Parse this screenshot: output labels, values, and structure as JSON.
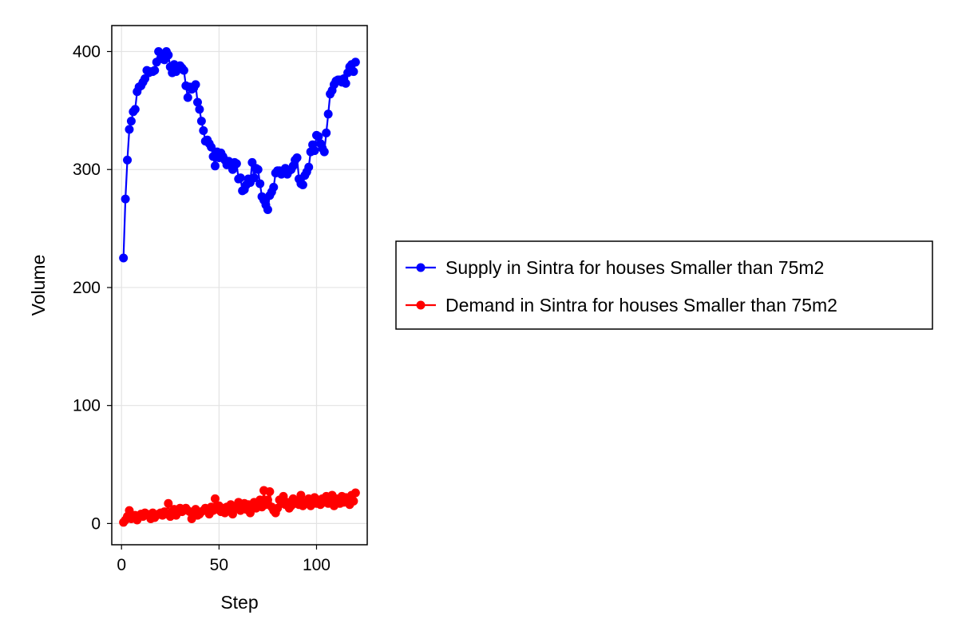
{
  "chart_data": {
    "type": "line",
    "xlabel": "Step",
    "ylabel": "Volume",
    "xlim": [
      -5,
      126
    ],
    "ylim": [
      -18,
      422
    ],
    "xticks": [
      0,
      50,
      100
    ],
    "yticks": [
      0,
      100,
      200,
      300,
      400
    ],
    "xtick_labels": [
      "0",
      "50",
      "100"
    ],
    "ytick_labels": [
      "0",
      "100",
      "200",
      "300",
      "400"
    ],
    "grid": true,
    "legend_position": "right-outside",
    "markers": true,
    "series": [
      {
        "name": "Supply in Sintra for houses Smaller than 75m2",
        "color": "#0000ff",
        "x": [
          1,
          2,
          3,
          4,
          5,
          6,
          7,
          8,
          9,
          10,
          11,
          12,
          13,
          14,
          15,
          16,
          17,
          18,
          19,
          20,
          21,
          22,
          23,
          24,
          25,
          26,
          27,
          28,
          29,
          30,
          31,
          32,
          33,
          34,
          35,
          36,
          37,
          38,
          39,
          40,
          41,
          42,
          43,
          44,
          45,
          46,
          47,
          48,
          49,
          50,
          51,
          52,
          53,
          54,
          55,
          56,
          57,
          58,
          59,
          60,
          61,
          62,
          63,
          64,
          65,
          66,
          67,
          68,
          69,
          70,
          71,
          72,
          73,
          74,
          75,
          76,
          77,
          78,
          79,
          80,
          81,
          82,
          83,
          84,
          85,
          86,
          87,
          88,
          89,
          90,
          91,
          92,
          93,
          94,
          95,
          96,
          97,
          98,
          99,
          100,
          101,
          102,
          103,
          104,
          105,
          106,
          107,
          108,
          109,
          110,
          111,
          112,
          113,
          114,
          115,
          116,
          117,
          118,
          119,
          120
        ],
        "values": [
          225,
          275,
          308,
          334,
          341,
          349,
          351,
          366,
          370,
          371,
          374,
          377,
          384,
          382,
          383,
          383,
          384,
          391,
          400,
          394,
          397,
          393,
          400,
          397,
          387,
          382,
          389,
          383,
          386,
          388,
          386,
          384,
          371,
          361,
          370,
          368,
          369,
          372,
          357,
          351,
          341,
          333,
          324,
          325,
          322,
          319,
          311,
          303,
          315,
          310,
          314,
          311,
          308,
          304,
          307,
          304,
          300,
          306,
          305,
          292,
          293,
          282,
          283,
          287,
          292,
          289,
          306,
          293,
          301,
          300,
          288,
          277,
          274,
          270,
          266,
          278,
          281,
          285,
          297,
          299,
          299,
          296,
          297,
          301,
          296,
          299,
          300,
          303,
          308,
          310,
          292,
          288,
          287,
          295,
          298,
          302,
          315,
          321,
          316,
          329,
          328,
          322,
          318,
          315,
          331,
          347,
          364,
          367,
          372,
          375,
          376,
          376,
          374,
          377,
          373,
          382,
          387,
          389,
          383,
          391
        ]
      },
      {
        "name": "Demand in Sintra for houses Smaller than 75m2",
        "color": "#ff0000",
        "x": [
          1,
          2,
          3,
          4,
          5,
          6,
          7,
          8,
          9,
          10,
          11,
          12,
          13,
          14,
          15,
          16,
          17,
          18,
          19,
          20,
          21,
          22,
          23,
          24,
          25,
          26,
          27,
          28,
          29,
          30,
          31,
          32,
          33,
          34,
          35,
          36,
          37,
          38,
          39,
          40,
          41,
          42,
          43,
          44,
          45,
          46,
          47,
          48,
          49,
          50,
          51,
          52,
          53,
          54,
          55,
          56,
          57,
          58,
          59,
          60,
          61,
          62,
          63,
          64,
          65,
          66,
          67,
          68,
          69,
          70,
          71,
          72,
          73,
          74,
          75,
          76,
          77,
          78,
          79,
          80,
          81,
          82,
          83,
          84,
          85,
          86,
          87,
          88,
          89,
          90,
          91,
          92,
          93,
          94,
          95,
          96,
          97,
          98,
          99,
          100,
          101,
          102,
          103,
          104,
          105,
          106,
          107,
          108,
          109,
          110,
          111,
          112,
          113,
          114,
          115,
          116,
          117,
          118,
          119,
          120
        ],
        "values": [
          1,
          3,
          6,
          11,
          4,
          5,
          7,
          3,
          6,
          8,
          6,
          9,
          8,
          7,
          4,
          9,
          5,
          7,
          8,
          9,
          7,
          10,
          8,
          17,
          6,
          9,
          12,
          7,
          11,
          13,
          10,
          12,
          13,
          11,
          10,
          4,
          9,
          12,
          7,
          8,
          10,
          11,
          13,
          12,
          8,
          14,
          11,
          21,
          12,
          15,
          10,
          13,
          9,
          14,
          12,
          16,
          8,
          13,
          15,
          18,
          11,
          14,
          17,
          12,
          16,
          9,
          15,
          18,
          13,
          17,
          20,
          14,
          28,
          16,
          20,
          27,
          14,
          11,
          9,
          13,
          20,
          17,
          23,
          16,
          18,
          13,
          15,
          21,
          17,
          19,
          16,
          24,
          15,
          18,
          17,
          21,
          15,
          19,
          22,
          17,
          20,
          16,
          21,
          18,
          23,
          17,
          20,
          24,
          15,
          21,
          19,
          17,
          23,
          18,
          22,
          20,
          16,
          24,
          19,
          26
        ]
      }
    ]
  }
}
